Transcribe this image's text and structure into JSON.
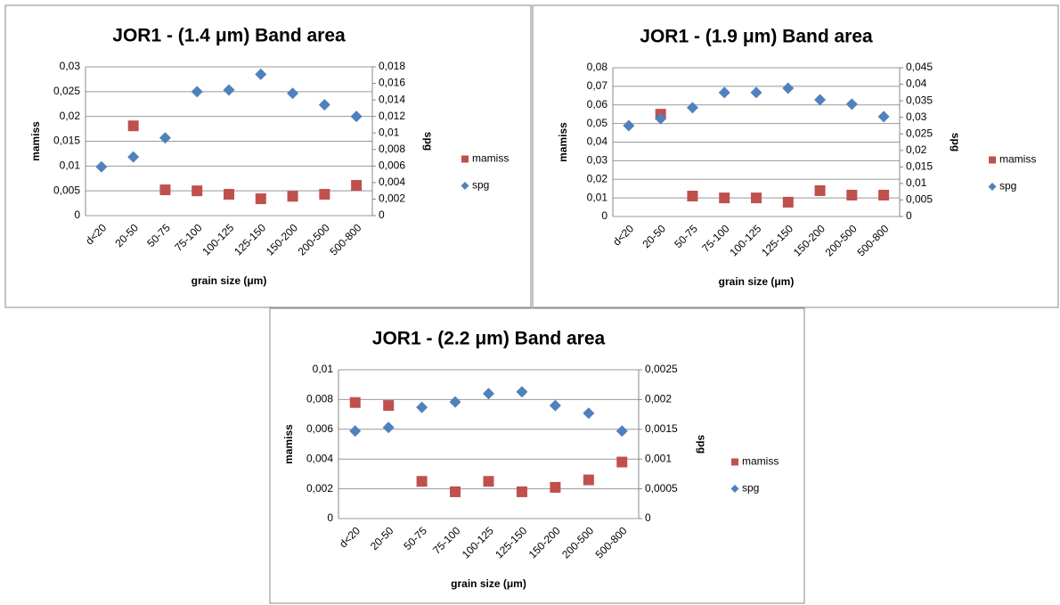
{
  "chart_data": [
    {
      "type": "scatter",
      "title": "JOR1 - (1.4 μm) Band area",
      "xlabel": "grain size (μm)",
      "ylabel": "mamiss",
      "y2label": "spg",
      "categories": [
        "d<20",
        "20-50",
        "50-75",
        "75-100",
        "100-125",
        "125-150",
        "150-200",
        "200-500",
        "500-800"
      ],
      "series": [
        {
          "name": "mamiss",
          "color": "#c0504d",
          "marker": "square",
          "values": [
            null,
            0.0181,
            0.0052,
            0.005,
            0.0043,
            0.0034,
            0.0039,
            0.0043,
            0.0061
          ]
        },
        {
          "name": "spg",
          "color": "#4f81bd",
          "marker": "diamond",
          "axis": "y2",
          "values": [
            0.0059,
            0.0071,
            0.0094,
            0.015,
            0.0152,
            0.0171,
            0.0148,
            0.0134,
            0.012
          ]
        }
      ],
      "ylim": [
        0,
        0.03
      ],
      "yticks": [
        0,
        {
          "value": 0.005,
          "label": "0,005"
        },
        {
          "value": 0.01,
          "label": "0,01"
        },
        {
          "value": 0.015,
          "label": "0,015"
        },
        {
          "value": 0.02,
          "label": "0,02"
        },
        {
          "value": 0.025,
          "label": "0,025"
        },
        {
          "value": 0.03,
          "label": "0,03"
        }
      ],
      "y2lim": [
        0,
        0.018
      ],
      "y2ticks": [
        0,
        {
          "value": 0.002,
          "label": "0,002"
        },
        {
          "value": 0.004,
          "label": "0,004"
        },
        {
          "value": 0.006,
          "label": "0,006"
        },
        {
          "value": 0.008,
          "label": "0,008"
        },
        {
          "value": 0.01,
          "label": "0,01"
        },
        {
          "value": 0.012,
          "label": "0,012"
        },
        {
          "value": 0.014,
          "label": "0,014"
        },
        {
          "value": 0.016,
          "label": "0,016"
        },
        {
          "value": 0.018,
          "label": "0,018"
        }
      ],
      "grid": true,
      "legend": "right"
    },
    {
      "type": "scatter",
      "title": "JOR1 - (1.9 μm) Band area",
      "xlabel": "grain size (μm)",
      "ylabel": "mamiss",
      "y2label": "spg",
      "categories": [
        "d<20",
        "20-50",
        "50-75",
        "75-100",
        "100-125",
        "125-150",
        "150-200",
        "200-500",
        "500-800"
      ],
      "series": [
        {
          "name": "mamiss",
          "color": "#c0504d",
          "marker": "square",
          "values": [
            null,
            0.055,
            0.011,
            0.01,
            0.01,
            0.0077,
            0.0139,
            0.0115,
            0.0115
          ]
        },
        {
          "name": "spg",
          "color": "#4f81bd",
          "marker": "diamond",
          "axis": "y2",
          "values": [
            0.0275,
            0.0296,
            0.0329,
            0.0375,
            0.0375,
            0.0388,
            0.0353,
            0.034,
            0.0302
          ]
        }
      ],
      "ylim": [
        0,
        0.08
      ],
      "yticks": [
        0,
        {
          "value": 0.01,
          "label": "0,01"
        },
        {
          "value": 0.02,
          "label": "0,02"
        },
        {
          "value": 0.03,
          "label": "0,03"
        },
        {
          "value": 0.04,
          "label": "0,04"
        },
        {
          "value": 0.05,
          "label": "0,05"
        },
        {
          "value": 0.06,
          "label": "0,06"
        },
        {
          "value": 0.07,
          "label": "0,07"
        },
        {
          "value": 0.08,
          "label": "0,08"
        }
      ],
      "y2lim": [
        0,
        0.045
      ],
      "y2ticks": [
        0,
        {
          "value": 0.005,
          "label": "0,005"
        },
        {
          "value": 0.01,
          "label": "0,01"
        },
        {
          "value": 0.015,
          "label": "0,015"
        },
        {
          "value": 0.02,
          "label": "0,02"
        },
        {
          "value": 0.025,
          "label": "0,025"
        },
        {
          "value": 0.03,
          "label": "0,03"
        },
        {
          "value": 0.035,
          "label": "0,035"
        },
        {
          "value": 0.04,
          "label": "0,04"
        },
        {
          "value": 0.045,
          "label": "0,045"
        }
      ],
      "grid": true,
      "legend": "right"
    },
    {
      "type": "scatter",
      "title": "JOR1 - (2.2 μm) Band area",
      "xlabel": "grain size (μm)",
      "ylabel": "mamiss",
      "y2label": "spg",
      "categories": [
        "d<20",
        "20-50",
        "50-75",
        "75-100",
        "100-125",
        "125-150",
        "150-200",
        "200-500",
        "500-800"
      ],
      "series": [
        {
          "name": "mamiss",
          "color": "#c0504d",
          "marker": "square",
          "values": [
            0.0078,
            0.0076,
            0.0025,
            0.0018,
            0.0025,
            0.0018,
            0.0021,
            0.0026,
            0.0038
          ]
        },
        {
          "name": "spg",
          "color": "#4f81bd",
          "marker": "diamond",
          "axis": "y2",
          "values": [
            0.00147,
            0.00153,
            0.00187,
            0.00196,
            0.0021,
            0.00213,
            0.0019,
            0.00177,
            0.00147
          ]
        }
      ],
      "ylim": [
        0,
        0.01
      ],
      "yticks": [
        0,
        {
          "value": 0.002,
          "label": "0,002"
        },
        {
          "value": 0.004,
          "label": "0,004"
        },
        {
          "value": 0.006,
          "label": "0,006"
        },
        {
          "value": 0.008,
          "label": "0,008"
        },
        {
          "value": 0.01,
          "label": "0,01"
        }
      ],
      "y2lim": [
        0,
        0.0025
      ],
      "y2ticks": [
        0,
        {
          "value": 0.0005,
          "label": "0,0005"
        },
        {
          "value": 0.001,
          "label": "0,001"
        },
        {
          "value": 0.0015,
          "label": "0,0015"
        },
        {
          "value": 0.002,
          "label": "0,002"
        },
        {
          "value": 0.0025,
          "label": "0,0025"
        }
      ],
      "grid": true,
      "legend": "right"
    }
  ]
}
